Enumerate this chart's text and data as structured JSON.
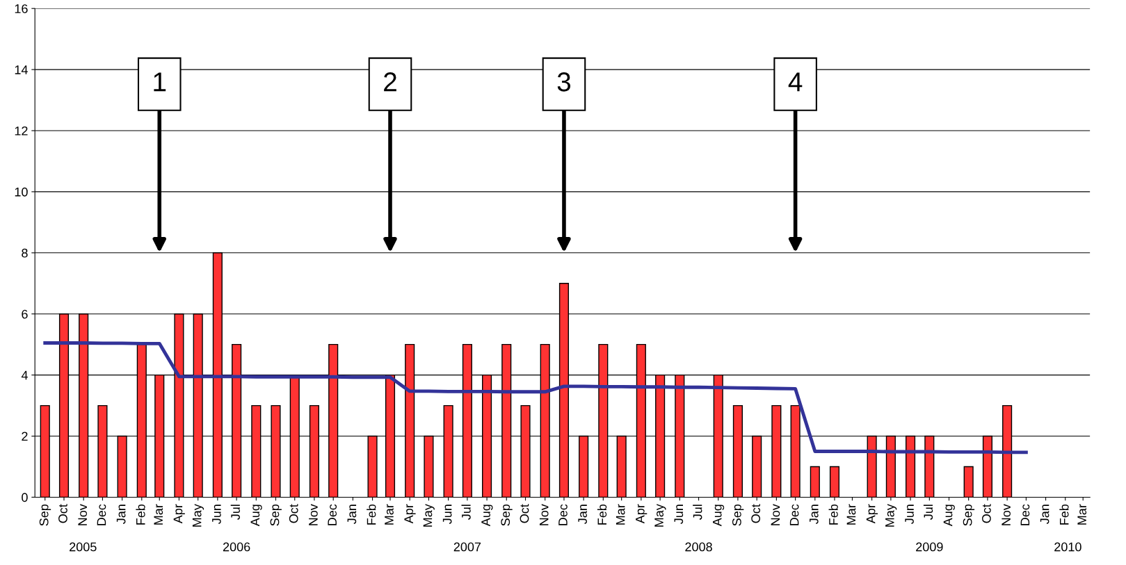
{
  "chart_data": {
    "type": "bar",
    "x": [
      "2005-09",
      "2005-10",
      "2005-11",
      "2005-12",
      "2006-01",
      "2006-02",
      "2006-03",
      "2006-04",
      "2006-05",
      "2006-06",
      "2006-07",
      "2006-08",
      "2006-09",
      "2006-10",
      "2006-11",
      "2006-12",
      "2007-01",
      "2007-02",
      "2007-03",
      "2007-04",
      "2007-05",
      "2007-06",
      "2007-07",
      "2007-08",
      "2007-09",
      "2007-10",
      "2007-11",
      "2007-12",
      "2008-01",
      "2008-02",
      "2008-03",
      "2008-04",
      "2008-05",
      "2008-06",
      "2008-07",
      "2008-08",
      "2008-09",
      "2008-10",
      "2008-11",
      "2008-12",
      "2009-01",
      "2009-02",
      "2009-03",
      "2009-04",
      "2009-05",
      "2009-06",
      "2009-07",
      "2009-08",
      "2009-09",
      "2009-10",
      "2009-11",
      "2009-12"
    ],
    "series": [
      {
        "color": "#ff3333",
        "values": [
          3,
          6,
          6,
          3,
          2,
          5,
          4,
          6,
          6,
          8,
          5,
          3,
          3,
          4,
          3,
          5,
          null,
          2,
          4,
          5,
          2,
          3,
          5,
          4,
          5,
          3,
          5,
          7,
          2,
          5,
          2,
          5,
          4,
          4,
          null,
          4,
          3,
          2,
          3,
          3,
          1,
          1,
          null,
          2,
          2,
          2,
          2,
          null,
          1,
          2,
          3,
          null
        ]
      },
      {
        "type": "line",
        "color": "#333399",
        "values": [
          5.05,
          5.05,
          5.05,
          5.04,
          5.04,
          5.03,
          5.03,
          3.95,
          3.95,
          3.95,
          3.95,
          3.94,
          3.94,
          3.94,
          3.94,
          3.94,
          3.93,
          3.93,
          3.93,
          3.47,
          3.47,
          3.46,
          3.46,
          3.46,
          3.45,
          3.45,
          3.45,
          3.63,
          3.63,
          3.62,
          3.62,
          3.61,
          3.61,
          3.6,
          3.6,
          3.59,
          3.58,
          3.57,
          3.56,
          3.55,
          1.5,
          1.5,
          1.5,
          1.5,
          1.49,
          1.49,
          1.49,
          1.48,
          1.48,
          1.48,
          1.47,
          1.47
        ]
      }
    ],
    "xlim": [
      "2005-08-16",
      "2010-03-12"
    ],
    "xticks": [
      {
        "value": "2005-09",
        "label": "Sep"
      },
      {
        "value": "2005-10",
        "label": "Oct"
      },
      {
        "value": "2005-11",
        "label": "Nov"
      },
      {
        "value": "2005-12",
        "label": "Dec"
      },
      {
        "value": "2006-01",
        "label": "Jan"
      },
      {
        "value": "2006-02",
        "label": "Feb"
      },
      {
        "value": "2006-03",
        "label": "Mar"
      },
      {
        "value": "2006-04",
        "label": "Apr"
      },
      {
        "value": "2006-05",
        "label": "May"
      },
      {
        "value": "2006-06",
        "label": "Jun"
      },
      {
        "value": "2006-07",
        "label": "Jul"
      },
      {
        "value": "2006-08",
        "label": "Aug"
      },
      {
        "value": "2006-09",
        "label": "Sep"
      },
      {
        "value": "2006-10",
        "label": "Oct"
      },
      {
        "value": "2006-11",
        "label": "Nov"
      },
      {
        "value": "2006-12",
        "label": "Dec"
      },
      {
        "value": "2007-01",
        "label": "Jan"
      },
      {
        "value": "2007-02",
        "label": "Feb"
      },
      {
        "value": "2007-03",
        "label": "Mar"
      },
      {
        "value": "2007-04",
        "label": "Apr"
      },
      {
        "value": "2007-05",
        "label": "May"
      },
      {
        "value": "2007-06",
        "label": "Jun"
      },
      {
        "value": "2007-07",
        "label": "Jul"
      },
      {
        "value": "2007-08",
        "label": "Aug"
      },
      {
        "value": "2007-09",
        "label": "Sep"
      },
      {
        "value": "2007-10",
        "label": "Oct"
      },
      {
        "value": "2007-11",
        "label": "Nov"
      },
      {
        "value": "2007-12",
        "label": "Dec"
      },
      {
        "value": "2008-01",
        "label": "Jan"
      },
      {
        "value": "2008-02",
        "label": "Feb"
      },
      {
        "value": "2008-03",
        "label": "Mar"
      },
      {
        "value": "2008-04",
        "label": "Apr"
      },
      {
        "value": "2008-05",
        "label": "May"
      },
      {
        "value": "2008-06",
        "label": "Jun"
      },
      {
        "value": "2008-07",
        "label": "Jul"
      },
      {
        "value": "2008-08",
        "label": "Aug"
      },
      {
        "value": "2008-09",
        "label": "Sep"
      },
      {
        "value": "2008-10",
        "label": "Oct"
      },
      {
        "value": "2008-11",
        "label": "Nov"
      },
      {
        "value": "2008-12",
        "label": "Dec"
      },
      {
        "value": "2009-01",
        "label": "Jan"
      },
      {
        "value": "2009-02",
        "label": "Feb"
      },
      {
        "value": "2009-03",
        "label": "Mar"
      },
      {
        "value": "2009-04",
        "label": "Apr"
      },
      {
        "value": "2009-05",
        "label": "May"
      },
      {
        "value": "2009-06",
        "label": "Jun"
      },
      {
        "value": "2009-07",
        "label": "Jul"
      },
      {
        "value": "2009-08",
        "label": "Aug"
      },
      {
        "value": "2009-09",
        "label": "Sep"
      },
      {
        "value": "2009-10",
        "label": "Oct"
      },
      {
        "value": "2009-11",
        "label": "Nov"
      },
      {
        "value": "2009-12",
        "label": "Dec"
      },
      {
        "value": "2010-01",
        "label": "Jan"
      },
      {
        "value": "2010-02",
        "label": "Feb"
      },
      {
        "value": "2010-03",
        "label": "Mar"
      }
    ],
    "x2lim": [
      "2005-08-16",
      "2010-03-12"
    ],
    "x2ticks": [
      {
        "value": "2005-10-31",
        "label": "2005"
      },
      {
        "value": "2006-07-01",
        "label": "2006"
      },
      {
        "value": "2007-07-01",
        "label": "2007"
      },
      {
        "value": "2008-07-01",
        "label": "2008"
      },
      {
        "value": "2009-07-01",
        "label": "2009"
      },
      {
        "value": "2010-02-05",
        "label": "2010"
      }
    ],
    "ylim": [
      0,
      16
    ],
    "yticks": [
      0,
      2,
      4,
      6,
      8,
      10,
      12,
      14,
      16
    ],
    "grid": "y",
    "annotations": [
      {
        "text": "1",
        "x": "2006-03"
      },
      {
        "text": "2",
        "x": "2007-03"
      },
      {
        "text": "3",
        "x": "2007-12"
      },
      {
        "text": "4",
        "x": "2008-12"
      }
    ]
  }
}
